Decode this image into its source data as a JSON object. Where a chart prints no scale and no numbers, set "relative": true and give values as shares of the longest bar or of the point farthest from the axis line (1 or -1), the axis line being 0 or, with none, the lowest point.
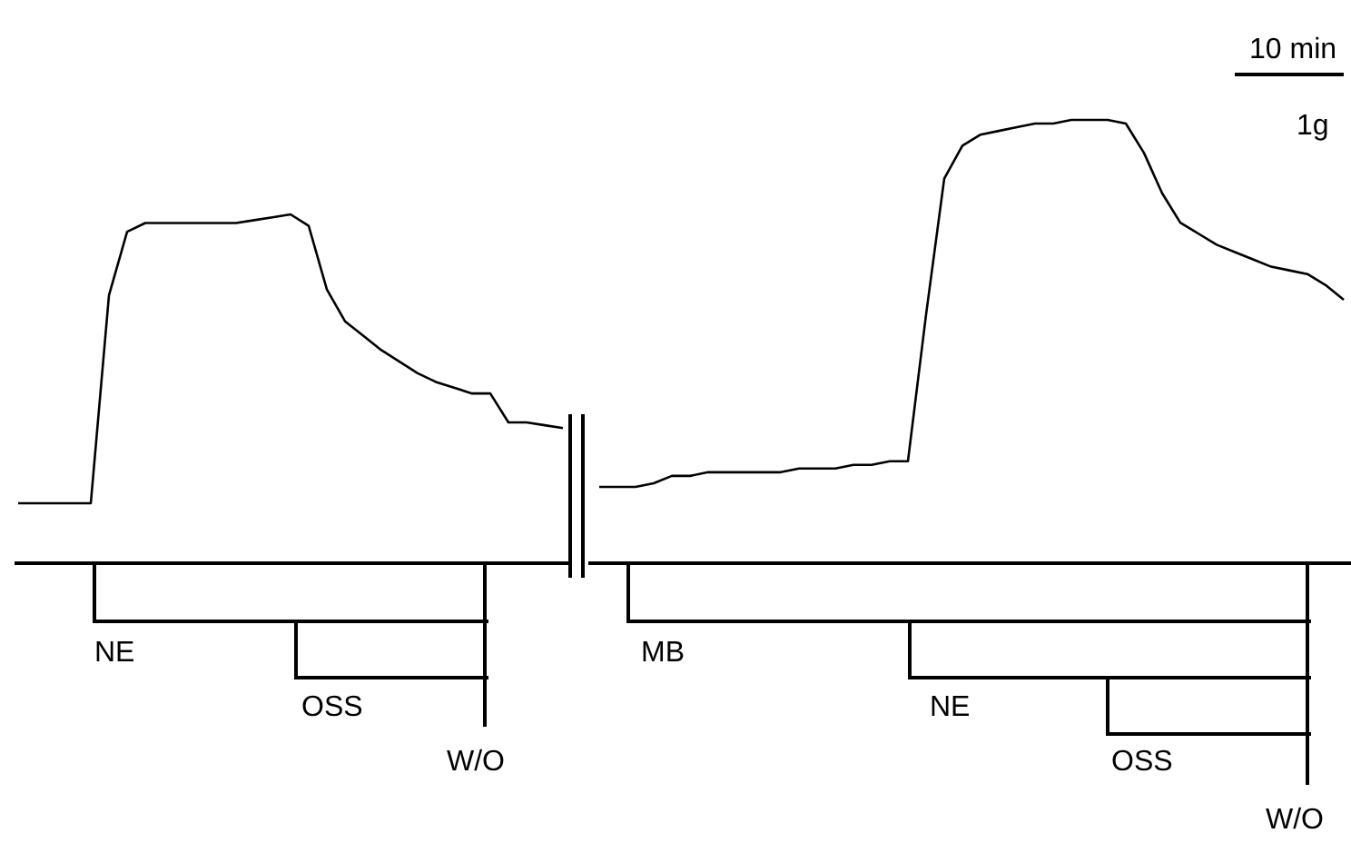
{
  "chart_data": [
    {
      "type": "line",
      "relative": true,
      "legend": false,
      "marker": "none",
      "categories": [
        null,
        null,
        null,
        null,
        null,
        null,
        null,
        null,
        null,
        null,
        null,
        null,
        null,
        null,
        null,
        null,
        null,
        null,
        null,
        null,
        null,
        null,
        null,
        null,
        null,
        null,
        null,
        null,
        null,
        null,
        null
      ],
      "series": [
        {
          "color": "#000000",
          "values": [
            0,
            0,
            0,
            0,
            0,
            0.72,
            0.94,
            0.97,
            0.97,
            0.97,
            0.97,
            0.97,
            0.97,
            0.98,
            0.99,
            1,
            0.96,
            0.74,
            0.63,
            0.58,
            0.53,
            0.49,
            0.45,
            0.42,
            0.4,
            0.38,
            0.38,
            0.28,
            0.28,
            0.27,
            0.26
          ]
        }
      ],
      "annotations": [
        "NE",
        "OSS",
        "W/O"
      ]
    },
    {
      "type": "line",
      "relative": true,
      "legend": false,
      "marker": "none",
      "categories": [
        null,
        null,
        null,
        null,
        null,
        null,
        null,
        null,
        null,
        null,
        null,
        null,
        null,
        null,
        null,
        null,
        null,
        null,
        null,
        null,
        null,
        null,
        null,
        null,
        null,
        null,
        null,
        null,
        null,
        null,
        null,
        null,
        null,
        null,
        null,
        null,
        null,
        null,
        null,
        null,
        null,
        null
      ],
      "series": [
        {
          "color": "#000000",
          "values": [
            0,
            0,
            0,
            0.01,
            0.03,
            0.03,
            0.04,
            0.04,
            0.04,
            0.04,
            0.04,
            0.05,
            0.05,
            0.05,
            0.06,
            0.06,
            0.07,
            0.07,
            0.47,
            0.84,
            0.93,
            0.96,
            0.97,
            0.98,
            0.99,
            0.99,
            1,
            1,
            1,
            0.99,
            0.91,
            0.8,
            0.72,
            0.69,
            0.66,
            0.64,
            0.62,
            0.6,
            0.59,
            0.58,
            0.55,
            0.51
          ]
        }
      ],
      "annotations": [
        "10 min",
        "1g",
        "MB",
        "NE",
        "OSS",
        "W/O"
      ]
    }
  ]
}
